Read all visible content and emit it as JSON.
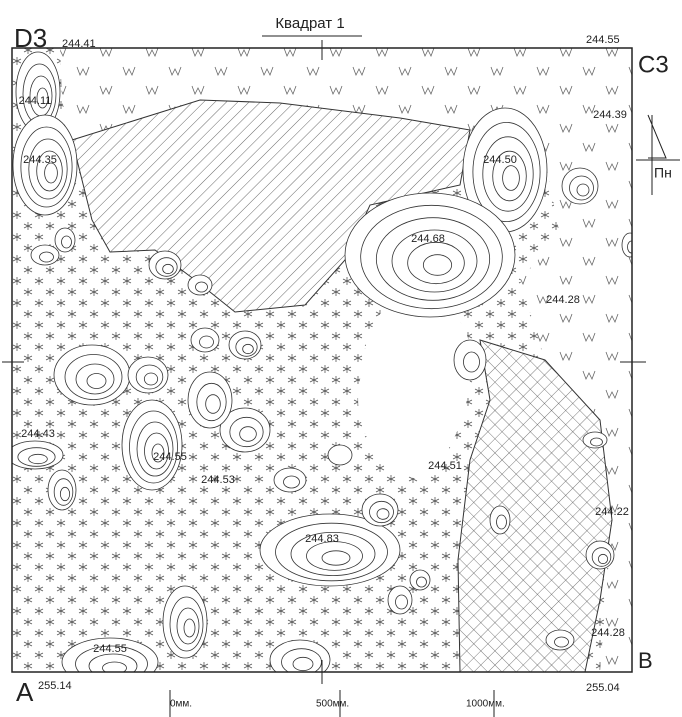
{
  "title": "Квадрат 1",
  "corners": {
    "top_left": {
      "label": "D3",
      "elevation": "244.41"
    },
    "top_right": {
      "label": "C3",
      "elevation": "244.55"
    },
    "bottom_left": {
      "label": "A",
      "elevation": "255.14"
    },
    "bottom_right": {
      "label": "B",
      "elevation": "255.04"
    }
  },
  "north_label": "Пн",
  "scale": [
    "0мм.",
    "500мм.",
    "1000мм."
  ],
  "spot_heights": [
    "244.11",
    "244.35",
    "244.39",
    "244.50",
    "244.68",
    "244.28",
    "244.43",
    "244.55",
    "244.53",
    "244.51",
    "244.22",
    "244.83",
    "244.28",
    "244.55"
  ]
}
